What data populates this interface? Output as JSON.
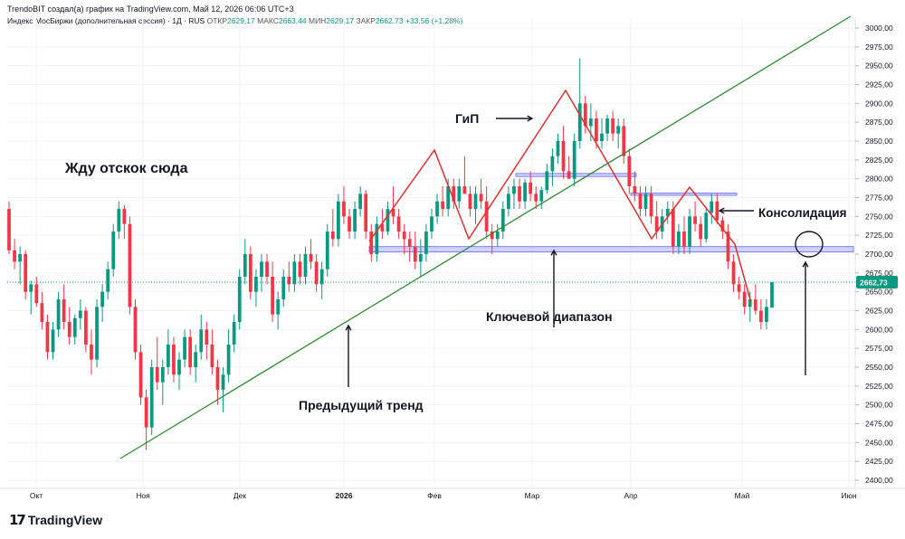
{
  "header": {
    "author_line": "TrendoBIT создал(а) график на TradingView.com, Май 12, 2026 06:06 UTC+3",
    "symbol": "Индекс МосБиржи (дополнительная сессия) · 1Д · RUS",
    "open_label": "ОТКР",
    "open": "2629,17",
    "high_label": "МАКС",
    "high": "2663,44",
    "low_label": "МИН",
    "low": "2629,17",
    "close_label": "ЗАКР",
    "close": "2662,73",
    "change": "+33,56 (+1,28%)"
  },
  "footer": {
    "brand": "TradingView"
  },
  "colors": {
    "up": "#089981",
    "down": "#f23645",
    "trend": "#2e8b2e",
    "pattern": "#e03030",
    "zone": "#7b7ff0"
  },
  "chart_data": {
    "type": "candlestick",
    "y_axis_ticks": [
      "3000,00",
      "2975,00",
      "2950,00",
      "2925,00",
      "2900,00",
      "2875,00",
      "2850,00",
      "2825,00",
      "2800,00",
      "2775,00",
      "2750,00",
      "2725,00",
      "2700,00",
      "2675,00",
      "2650,00",
      "2625,00",
      "2600,00",
      "2575,00",
      "2550,00",
      "2525,00",
      "2500,00",
      "2475,00",
      "2450,00",
      "2425,00",
      "2400,00"
    ],
    "ylim": [
      2390,
      3010
    ],
    "x_axis_labels": [
      "Окт",
      "Ноя",
      "Дек",
      "2026",
      "Фев",
      "Мар",
      "Апр",
      "Май",
      "Июн"
    ],
    "last_price": "2662,73",
    "last_price_value": 2662.73,
    "annotations": {
      "hs": "ГиП",
      "wait": "Жду отскок сюда",
      "consolidation": "Консолидация",
      "key_range": "Ключевой диапазон",
      "prev_trend": "Предыдущий тренд"
    },
    "key_range_zone": [
      2703,
      2710
    ],
    "upper_zones": [
      [
        2803,
        2807
      ],
      [
        2778,
        2781
      ]
    ],
    "candles": [
      [
        2760,
        2770,
        2700,
        2705
      ],
      [
        2705,
        2720,
        2680,
        2690
      ],
      [
        2690,
        2710,
        2660,
        2700
      ],
      [
        2700,
        2705,
        2640,
        2650
      ],
      [
        2650,
        2665,
        2620,
        2660
      ],
      [
        2660,
        2670,
        2630,
        2635
      ],
      [
        2635,
        2650,
        2600,
        2610
      ],
      [
        2610,
        2620,
        2560,
        2570
      ],
      [
        2570,
        2610,
        2560,
        2600
      ],
      [
        2600,
        2650,
        2590,
        2640
      ],
      [
        2640,
        2660,
        2600,
        2610
      ],
      [
        2610,
        2630,
        2580,
        2590
      ],
      [
        2590,
        2620,
        2580,
        2615
      ],
      [
        2615,
        2640,
        2600,
        2625
      ],
      [
        2625,
        2630,
        2570,
        2580
      ],
      [
        2580,
        2600,
        2540,
        2560
      ],
      [
        2560,
        2640,
        2550,
        2630
      ],
      [
        2630,
        2660,
        2610,
        2650
      ],
      [
        2650,
        2690,
        2640,
        2680
      ],
      [
        2680,
        2740,
        2670,
        2730
      ],
      [
        2730,
        2770,
        2720,
        2760
      ],
      [
        2760,
        2765,
        2720,
        2740
      ],
      [
        2740,
        2750,
        2620,
        2630
      ],
      [
        2630,
        2640,
        2560,
        2570
      ],
      [
        2570,
        2580,
        2500,
        2510
      ],
      [
        2510,
        2520,
        2440,
        2470
      ],
      [
        2470,
        2560,
        2460,
        2550
      ],
      [
        2550,
        2590,
        2520,
        2530
      ],
      [
        2530,
        2560,
        2500,
        2550
      ],
      [
        2550,
        2600,
        2540,
        2580
      ],
      [
        2580,
        2590,
        2530,
        2540
      ],
      [
        2540,
        2570,
        2520,
        2560
      ],
      [
        2560,
        2600,
        2550,
        2590
      ],
      [
        2590,
        2600,
        2540,
        2550
      ],
      [
        2550,
        2580,
        2530,
        2570
      ],
      [
        2570,
        2620,
        2560,
        2600
      ],
      [
        2600,
        2610,
        2560,
        2580
      ],
      [
        2580,
        2600,
        2540,
        2550
      ],
      [
        2550,
        2560,
        2500,
        2520
      ],
      [
        2520,
        2550,
        2490,
        2540
      ],
      [
        2540,
        2600,
        2530,
        2580
      ],
      [
        2580,
        2620,
        2570,
        2610
      ],
      [
        2610,
        2680,
        2600,
        2670
      ],
      [
        2670,
        2720,
        2660,
        2700
      ],
      [
        2700,
        2710,
        2640,
        2650
      ],
      [
        2650,
        2680,
        2630,
        2670
      ],
      [
        2670,
        2700,
        2650,
        2690
      ],
      [
        2690,
        2700,
        2660,
        2670
      ],
      [
        2670,
        2690,
        2610,
        2620
      ],
      [
        2620,
        2650,
        2600,
        2640
      ],
      [
        2640,
        2680,
        2630,
        2670
      ],
      [
        2670,
        2690,
        2650,
        2660
      ],
      [
        2660,
        2700,
        2650,
        2690
      ],
      [
        2690,
        2700,
        2660,
        2670
      ],
      [
        2670,
        2710,
        2660,
        2700
      ],
      [
        2700,
        2720,
        2680,
        2690
      ],
      [
        2690,
        2700,
        2650,
        2660
      ],
      [
        2660,
        2690,
        2640,
        2680
      ],
      [
        2680,
        2740,
        2670,
        2730
      ],
      [
        2730,
        2760,
        2710,
        2720
      ],
      [
        2720,
        2780,
        2710,
        2770
      ],
      [
        2770,
        2790,
        2740,
        2750
      ],
      [
        2750,
        2760,
        2720,
        2730
      ],
      [
        2730,
        2770,
        2720,
        2760
      ],
      [
        2760,
        2790,
        2750,
        2780
      ],
      [
        2780,
        2785,
        2720,
        2730
      ],
      [
        2730,
        2740,
        2690,
        2700
      ],
      [
        2700,
        2750,
        2690,
        2740
      ],
      [
        2740,
        2760,
        2720,
        2730
      ],
      [
        2730,
        2770,
        2725,
        2760
      ],
      [
        2760,
        2790,
        2740,
        2750
      ],
      [
        2750,
        2760,
        2720,
        2730
      ],
      [
        2730,
        2740,
        2700,
        2720
      ],
      [
        2720,
        2730,
        2690,
        2710
      ],
      [
        2710,
        2730,
        2680,
        2690
      ],
      [
        2690,
        2720,
        2670,
        2700
      ],
      [
        2700,
        2740,
        2690,
        2730
      ],
      [
        2730,
        2760,
        2720,
        2750
      ],
      [
        2750,
        2780,
        2740,
        2770
      ],
      [
        2770,
        2790,
        2750,
        2760
      ],
      [
        2760,
        2800,
        2750,
        2790
      ],
      [
        2790,
        2800,
        2760,
        2770
      ],
      [
        2770,
        2800,
        2760,
        2790
      ],
      [
        2790,
        2830,
        2780,
        2780
      ],
      [
        2780,
        2790,
        2750,
        2760
      ],
      [
        2760,
        2790,
        2740,
        2780
      ],
      [
        2780,
        2800,
        2760,
        2770
      ],
      [
        2770,
        2790,
        2720,
        2730
      ],
      [
        2730,
        2740,
        2700,
        2720
      ],
      [
        2720,
        2740,
        2710,
        2730
      ],
      [
        2730,
        2770,
        2720,
        2760
      ],
      [
        2760,
        2790,
        2750,
        2780
      ],
      [
        2780,
        2800,
        2760,
        2790
      ],
      [
        2790,
        2800,
        2760,
        2770
      ],
      [
        2770,
        2800,
        2760,
        2795
      ],
      [
        2795,
        2810,
        2770,
        2780
      ],
      [
        2780,
        2790,
        2760,
        2770
      ],
      [
        2770,
        2790,
        2760,
        2785
      ],
      [
        2785,
        2820,
        2780,
        2810
      ],
      [
        2810,
        2840,
        2790,
        2830
      ],
      [
        2830,
        2860,
        2820,
        2850
      ],
      [
        2850,
        2870,
        2800,
        2810
      ],
      [
        2810,
        2830,
        2800,
        2800
      ],
      [
        2800,
        2860,
        2790,
        2850
      ],
      [
        2850,
        2960,
        2840,
        2900
      ],
      [
        2900,
        2910,
        2860,
        2870
      ],
      [
        2870,
        2900,
        2850,
        2880
      ],
      [
        2880,
        2890,
        2840,
        2850
      ],
      [
        2850,
        2880,
        2840,
        2860
      ],
      [
        2860,
        2885,
        2850,
        2880
      ],
      [
        2880,
        2890,
        2850,
        2860
      ],
      [
        2860,
        2880,
        2840,
        2870
      ],
      [
        2870,
        2880,
        2820,
        2830
      ],
      [
        2830,
        2840,
        2780,
        2790
      ],
      [
        2790,
        2810,
        2770,
        2780
      ],
      [
        2780,
        2790,
        2750,
        2760
      ],
      [
        2760,
        2790,
        2750,
        2780
      ],
      [
        2780,
        2790,
        2740,
        2750
      ],
      [
        2750,
        2770,
        2720,
        2730
      ],
      [
        2730,
        2760,
        2720,
        2750
      ],
      [
        2750,
        2770,
        2740,
        2760
      ],
      [
        2760,
        2770,
        2700,
        2710
      ],
      [
        2710,
        2740,
        2700,
        2730
      ],
      [
        2730,
        2750,
        2700,
        2710
      ],
      [
        2710,
        2760,
        2700,
        2750
      ],
      [
        2750,
        2770,
        2730,
        2740
      ],
      [
        2740,
        2750,
        2710,
        2720
      ],
      [
        2720,
        2760,
        2715,
        2755
      ],
      [
        2755,
        2780,
        2740,
        2770
      ],
      [
        2770,
        2780,
        2740,
        2745
      ],
      [
        2745,
        2750,
        2720,
        2730
      ],
      [
        2730,
        2740,
        2680,
        2690
      ],
      [
        2690,
        2700,
        2650,
        2660
      ],
      [
        2660,
        2670,
        2640,
        2650
      ],
      [
        2650,
        2660,
        2620,
        2630
      ],
      [
        2630,
        2650,
        2610,
        2640
      ],
      [
        2640,
        2660,
        2620,
        2625
      ],
      [
        2625,
        2640,
        2600,
        2610
      ],
      [
        2610,
        2640,
        2600,
        2630
      ],
      [
        2629,
        2663,
        2629,
        2663
      ]
    ]
  }
}
